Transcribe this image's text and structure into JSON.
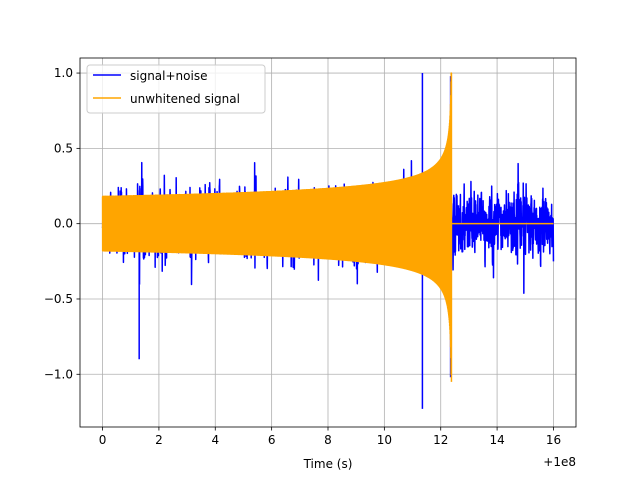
{
  "chart_data": {
    "type": "line",
    "title": "",
    "xlabel": "Time (s)",
    "ylabel": "",
    "x_offset_label": "+1e8",
    "xlim": [
      -0.8,
      16.8
    ],
    "ylim": [
      -1.35,
      1.1
    ],
    "x_ticks": [
      0,
      2,
      4,
      6,
      8,
      10,
      12,
      14,
      16
    ],
    "x_tick_labels": [
      "0",
      "2",
      "4",
      "6",
      "8",
      "10",
      "12",
      "14",
      "16"
    ],
    "y_ticks": [
      -1.0,
      -0.5,
      0.0,
      0.5,
      1.0
    ],
    "y_tick_labels": [
      "−1.0",
      "−0.5",
      "0.0",
      "0.5",
      "1.0"
    ],
    "grid": true,
    "legend": "top-left",
    "series": [
      {
        "name": "signal+noise",
        "color": "#0000ff",
        "x_range": [
          0,
          16
        ],
        "typical_amplitude": 0.3,
        "annotated_extremes": [
          {
            "x": 11.35,
            "y": 1.0
          },
          {
            "x": 11.35,
            "y": -1.23
          },
          {
            "x": 1.3,
            "y": -0.9
          },
          {
            "x": 12.35,
            "y": 0.98
          },
          {
            "x": 12.35,
            "y": -1.02
          }
        ]
      },
      {
        "name": "unwhitened signal",
        "color": "#ffa500",
        "x_range": [
          0,
          16
        ],
        "envelope_start": 0.18,
        "merger_x": 12.38,
        "peak_amplitude": 1.0,
        "post_merger_value": 0.0
      }
    ]
  }
}
